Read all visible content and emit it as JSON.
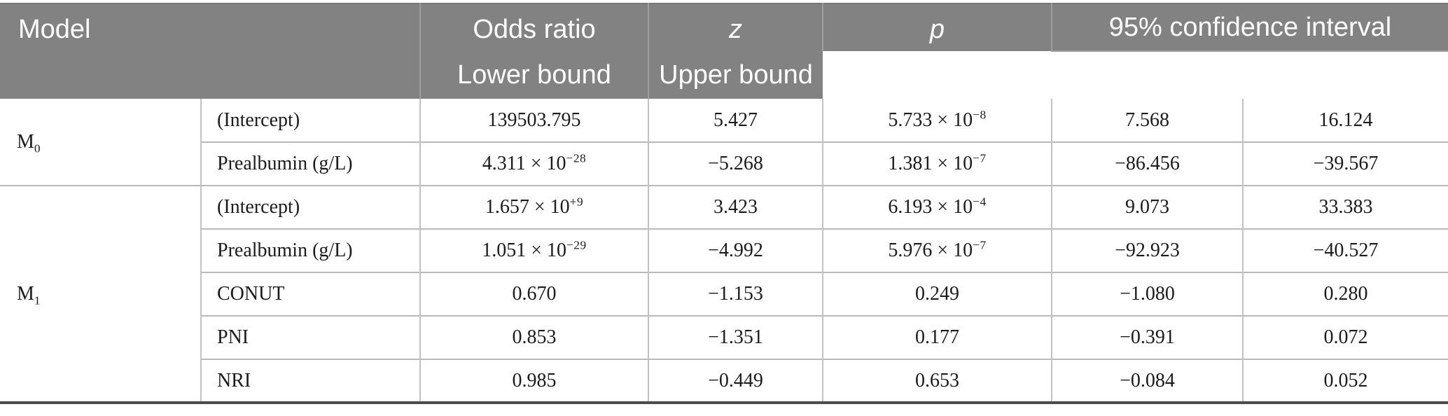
{
  "colors": {
    "header_background": "#828282",
    "header_text": "#ffffff",
    "header_divider": "#9d9d9d",
    "body_text": "#1b1b1b",
    "row_divider": "#b9b9b9",
    "column_divider": "#c2c2c2",
    "bottom_border": "#4c4c4c"
  },
  "table": {
    "header": {
      "model": "Model",
      "odds_ratio": "Odds ratio",
      "z": "z",
      "p": "p",
      "ci": "95% confidence interval",
      "lower": "Lower bound",
      "upper": "Upper bound"
    },
    "groups": [
      {
        "model": "M~0",
        "rows": [
          {
            "label": "(Intercept)",
            "values": [
              "139503.795",
              "5.427",
              "5.733 × 10^−8",
              "7.568",
              "16.124"
            ]
          },
          {
            "label": "Prealbumin (g/L)",
            "values": [
              "4.311 × 10^−28",
              "−5.268",
              "1.381 × 10^−7",
              "−86.456",
              "−39.567"
            ]
          }
        ]
      },
      {
        "model": "M~1",
        "rows": [
          {
            "label": "(Intercept)",
            "values": [
              "1.657 × 10^+9",
              "3.423",
              "6.193 × 10^−4",
              "9.073",
              "33.383"
            ]
          },
          {
            "label": "Prealbumin (g/L)",
            "values": [
              "1.051 × 10^−29",
              "−4.992",
              "5.976 × 10^−7",
              "−92.923",
              "−40.527"
            ]
          },
          {
            "label": "CONUT",
            "values": [
              "0.670",
              "−1.153",
              "0.249",
              "−1.080",
              "0.280"
            ]
          },
          {
            "label": "PNI",
            "values": [
              "0.853",
              "−1.351",
              "0.177",
              "−0.391",
              "0.072"
            ]
          },
          {
            "label": "NRI",
            "values": [
              "0.985",
              "−0.449",
              "0.653",
              "−0.084",
              "0.052"
            ]
          }
        ]
      }
    ]
  }
}
